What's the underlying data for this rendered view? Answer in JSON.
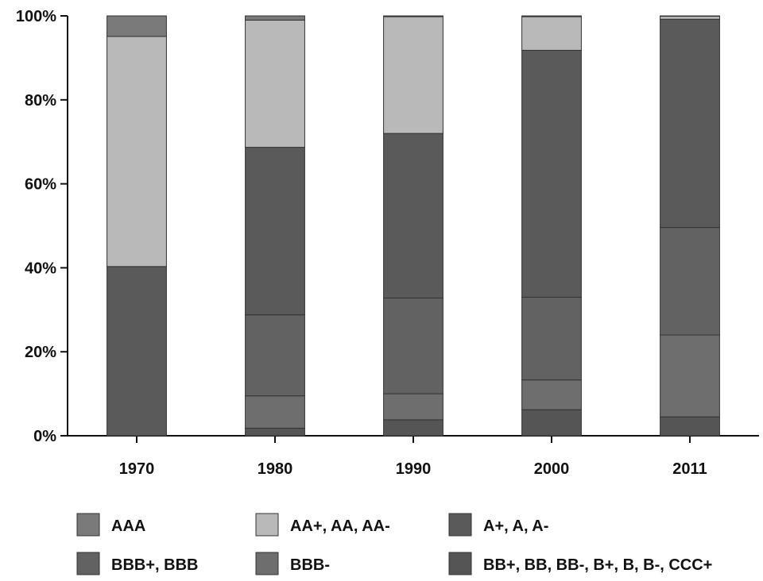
{
  "chart_data": {
    "type": "bar",
    "stacked": true,
    "categories": [
      "1970",
      "1980",
      "1990",
      "2000",
      "2011"
    ],
    "ylim": [
      0,
      100
    ],
    "yticks": [
      "0%",
      "20%",
      "40%",
      "60%",
      "80%",
      "100%"
    ],
    "ytick_values": [
      0,
      20,
      40,
      60,
      80,
      100
    ],
    "grid": false,
    "legend_position": "bottom",
    "series": [
      {
        "name": "BB+, BB, BB-, B+, B, B-, CCC+",
        "color": "#555555",
        "values": [
          0,
          1.8,
          3.8,
          6.2,
          4.5
        ]
      },
      {
        "name": "BBB-",
        "color": "#6e6e6e",
        "values": [
          0,
          7.7,
          6.2,
          7.1,
          19.5
        ]
      },
      {
        "name": "BBB+, BBB",
        "color": "#626262",
        "values": [
          0,
          19.3,
          22.8,
          19.7,
          25.6
        ]
      },
      {
        "name": "A+, A, A-",
        "color": "#5a5a5a",
        "values": [
          40.3,
          39.9,
          39.2,
          58.8,
          49.6
        ]
      },
      {
        "name": "AA+, AA, AA-",
        "color": "#b9b9b9",
        "values": [
          54.8,
          30.3,
          27.8,
          8.0,
          0.7
        ]
      },
      {
        "name": "AAA",
        "color": "#7a7a7a",
        "values": [
          4.9,
          1.0,
          0.2,
          0.2,
          0.1
        ]
      }
    ],
    "legend_order": [
      "AAA",
      "AA+, AA, AA-",
      "A+, A, A-",
      "BBB+, BBB",
      "BBB-",
      "BB+, BB, BB-, B+, B, B-, CCC+"
    ]
  }
}
